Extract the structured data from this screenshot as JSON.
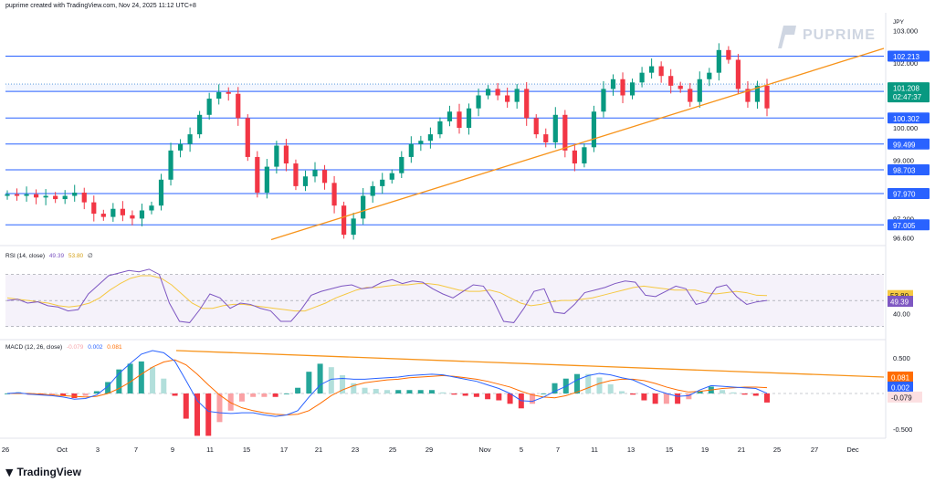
{
  "header": {
    "text": "puprime created with TradingView.com, Nov 24, 2025 11:12 UTC+8"
  },
  "brand": {
    "name": "PUPRIME"
  },
  "tv_logo": {
    "text": "TradingView"
  },
  "currency": "JPY",
  "rsi_label": {
    "name": "RSI (14, close)",
    "v1": "49.39",
    "v2": "53.80"
  },
  "macd_label": {
    "name": "MACD (12, 26, close)",
    "v1": "-0.079",
    "v2": "0.002",
    "v3": "0.081"
  },
  "colors": {
    "up": "#089981",
    "down": "#f23645",
    "level": "#2962ff",
    "trend": "#f7931a",
    "rsi": "#7e57c2",
    "rsi_ma": "#f5c842",
    "macd": "#2962ff",
    "signal": "#ff6d00",
    "label_dark": "#2962ff",
    "price_tag": "#089981"
  },
  "chart_data": [
    {
      "type": "candlestick",
      "title": "",
      "ylim": [
        96.45,
        103.55
      ],
      "xlim_days": [
        "2025-09-26",
        "2025-12-02"
      ],
      "price_axis_ticks": [
        "103.000",
        "102.000",
        "100.000",
        "99.000",
        "97.200",
        "96.600"
      ],
      "x_ticks": [
        "26",
        "Oct",
        "3",
        "7",
        "9",
        "11",
        "15",
        "17",
        "21",
        "23",
        "25",
        "29",
        "Nov",
        "5",
        "7",
        "11",
        "13",
        "15",
        "19",
        "21",
        "25",
        "27",
        "Dec"
      ],
      "levels": [
        102.213,
        101.125,
        100.302,
        99.499,
        98.703,
        97.97,
        97.005
      ],
      "current_price": {
        "value": "101.208",
        "countdown": "02:47:37"
      },
      "trendline_prices": [
        96.55,
        102.45
      ],
      "price_path": [
        97.95,
        97.9,
        97.95,
        97.85,
        97.9,
        97.8,
        97.9,
        98.0,
        97.7,
        97.35,
        97.25,
        97.5,
        97.3,
        97.2,
        97.45,
        97.6,
        98.4,
        99.3,
        99.5,
        99.8,
        100.4,
        100.9,
        101.1,
        101.05,
        100.3,
        99.1,
        98.0,
        98.8,
        99.45,
        98.9,
        98.2,
        98.5,
        98.7,
        98.3,
        97.6,
        96.7,
        97.2,
        97.9,
        98.2,
        98.4,
        98.6,
        99.1,
        99.5,
        99.6,
        99.8,
        100.2,
        100.5,
        100.0,
        100.6,
        101.0,
        101.2,
        101.0,
        100.8,
        101.2,
        100.3,
        99.8,
        99.55,
        100.4,
        99.3,
        98.9,
        99.4,
        100.5,
        101.2,
        101.5,
        101.0,
        101.4,
        101.7,
        101.9,
        101.6,
        101.3,
        101.2,
        100.8,
        101.5,
        101.7,
        102.4,
        102.1,
        101.2,
        100.8,
        101.3,
        100.6
      ],
      "highlight_range": [
        101.125,
        101.35
      ]
    },
    {
      "type": "line",
      "title": "RSI (14, close)",
      "band": [
        30,
        70
      ],
      "ylim": [
        27,
        83
      ],
      "axis_tick": "40.00",
      "series": [
        {
          "name": "RSI",
          "last": "49.39",
          "values": [
            50,
            51,
            48,
            49,
            46,
            45,
            42,
            43,
            55,
            62,
            69,
            71,
            73,
            72,
            74,
            70,
            48,
            34,
            33,
            43,
            55,
            52,
            44,
            48,
            47,
            44,
            42,
            34,
            34,
            43,
            54,
            57,
            59,
            61,
            62,
            59,
            60,
            64,
            66,
            63,
            65,
            64,
            59,
            55,
            52,
            57,
            62,
            61,
            50,
            34,
            33,
            44,
            57,
            59,
            41,
            40,
            47,
            56,
            58,
            60,
            63,
            65,
            64,
            54,
            53,
            57,
            61,
            59,
            47,
            49,
            60,
            62,
            53,
            47,
            49,
            50
          ]
        },
        {
          "name": "RSI MA",
          "last": "53.80",
          "values": [
            52,
            51,
            50,
            49,
            48,
            46,
            45,
            46,
            48,
            52,
            58,
            63,
            67,
            69,
            69,
            67,
            62,
            55,
            48,
            44,
            44,
            46,
            47,
            47,
            46,
            45,
            44,
            43,
            42,
            42,
            45,
            48,
            52,
            55,
            58,
            60,
            60,
            61,
            62,
            62,
            63,
            63,
            62,
            60,
            58,
            57,
            57,
            58,
            56,
            52,
            48,
            46,
            47,
            49,
            50,
            50,
            51,
            52,
            54,
            56,
            58,
            60,
            61,
            60,
            59,
            58,
            58,
            58,
            56,
            55,
            56,
            57,
            56,
            54,
            53.8
          ]
        }
      ]
    },
    {
      "type": "line",
      "title": "MACD (12, 26, close)",
      "ylim": [
        -0.6,
        0.6
      ],
      "axis_ticks": [
        "0.500",
        "-0.500"
      ],
      "series": [
        {
          "name": "MACD",
          "last": "0.002",
          "values": [
            0,
            0.01,
            -0.01,
            -0.02,
            -0.03,
            -0.05,
            -0.08,
            -0.07,
            -0.02,
            0.1,
            0.28,
            0.42,
            0.55,
            0.6,
            0.57,
            0.45,
            0.18,
            -0.1,
            -0.25,
            -0.27,
            -0.28,
            -0.27,
            -0.27,
            -0.3,
            -0.32,
            -0.3,
            -0.24,
            -0.05,
            0.12,
            0.2,
            0.21,
            0.2,
            0.2,
            0.21,
            0.22,
            0.23,
            0.25,
            0.26,
            0.27,
            0.26,
            0.23,
            0.2,
            0.17,
            0.12,
            0.07,
            0.0,
            -0.1,
            -0.11,
            -0.05,
            0.03,
            0.1,
            0.19,
            0.25,
            0.28,
            0.26,
            0.22,
            0.19,
            0.12,
            0.05,
            0.0,
            -0.04,
            -0.03,
            0.05,
            0.11,
            0.1,
            0.09,
            0.08,
            0.07,
            0.002
          ]
        },
        {
          "name": "Signal",
          "last": "0.081",
          "values": [
            0,
            0,
            0,
            -0.01,
            -0.02,
            -0.03,
            -0.04,
            -0.05,
            -0.04,
            0.0,
            0.07,
            0.16,
            0.27,
            0.37,
            0.44,
            0.47,
            0.4,
            0.27,
            0.12,
            -0.02,
            -0.13,
            -0.2,
            -0.24,
            -0.27,
            -0.29,
            -0.3,
            -0.29,
            -0.24,
            -0.14,
            -0.03,
            0.05,
            0.11,
            0.15,
            0.17,
            0.19,
            0.2,
            0.22,
            0.23,
            0.24,
            0.25,
            0.24,
            0.22,
            0.2,
            0.17,
            0.13,
            0.09,
            0.03,
            -0.02,
            -0.05,
            -0.06,
            -0.03,
            0.02,
            0.08,
            0.14,
            0.18,
            0.2,
            0.2,
            0.18,
            0.14,
            0.09,
            0.05,
            0.02,
            0.03,
            0.05,
            0.07,
            0.08,
            0.09,
            0.09,
            0.081
          ]
        },
        {
          "name": "Histogram",
          "last": "-0.079"
        }
      ],
      "trendline": [
        0.6,
        0.23
      ]
    }
  ]
}
